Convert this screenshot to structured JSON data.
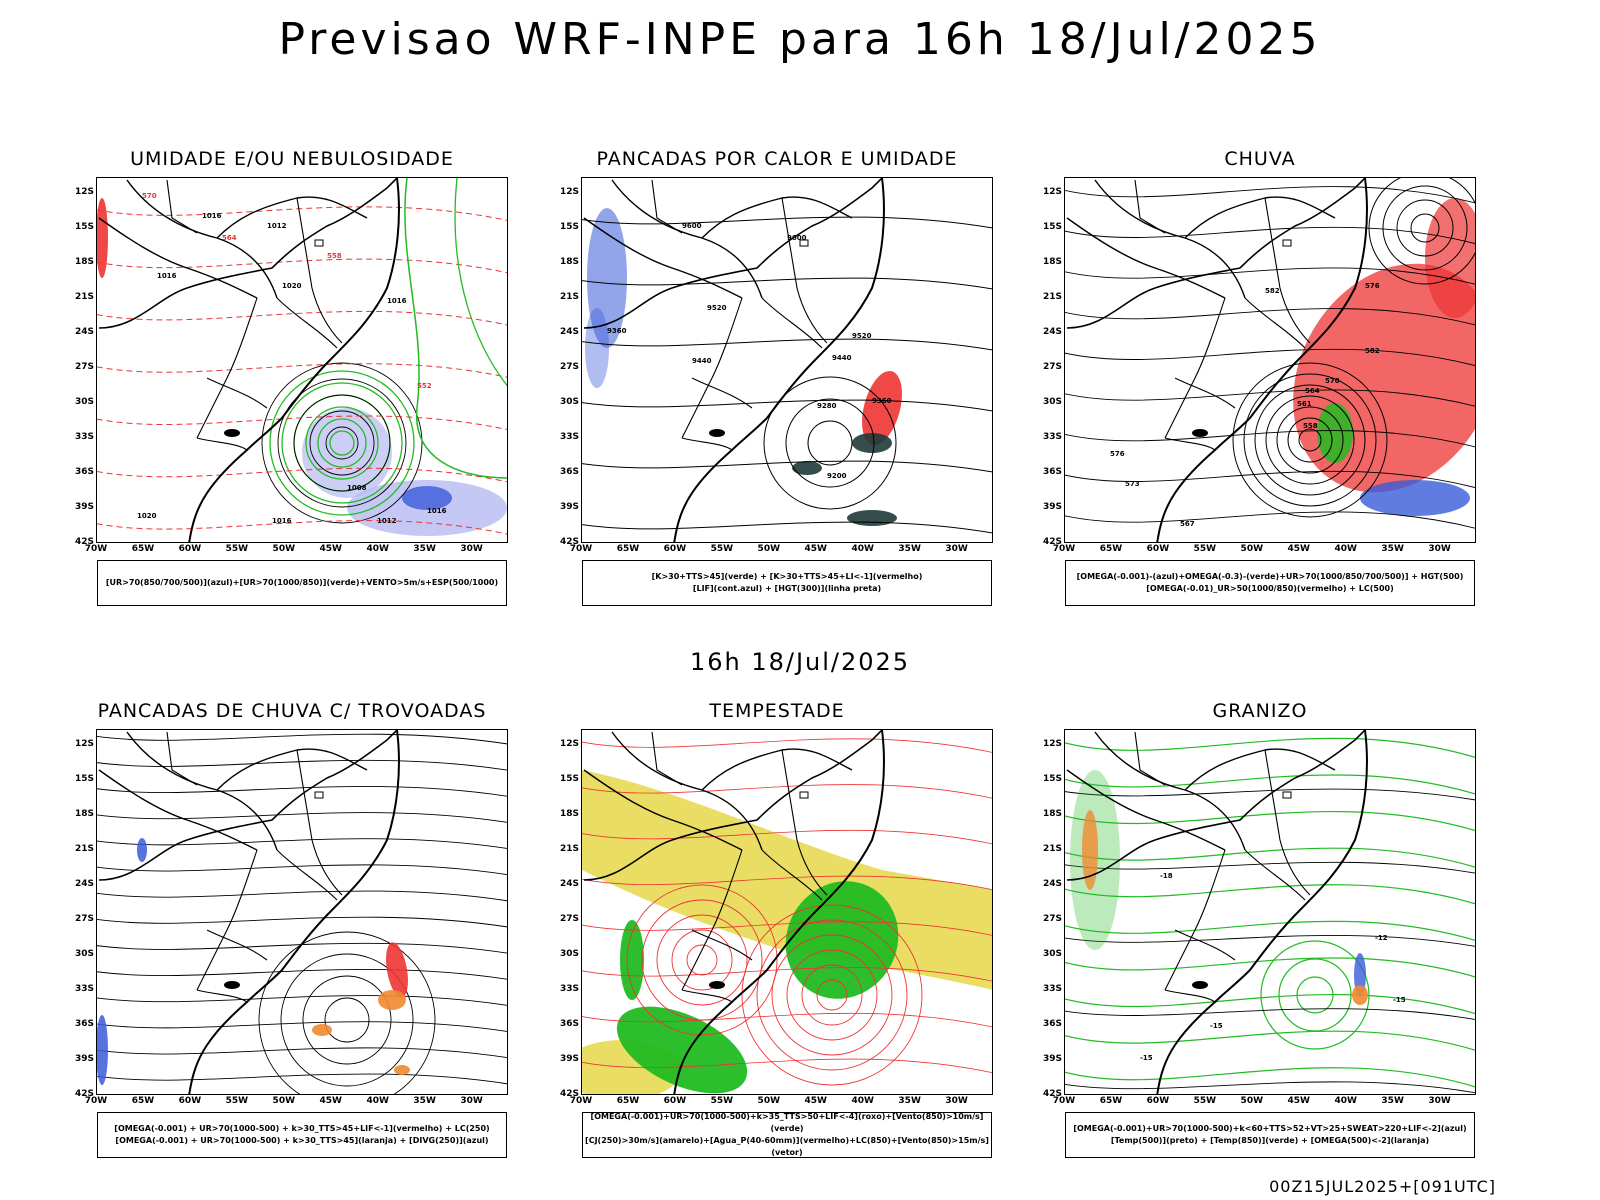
{
  "page": {
    "title": "Previsao WRF-INPE  para 16h 18/Jul/2025",
    "subtitle": "16h 18/Jul/2025",
    "footer": "00Z15JUL2025+[091UTC]"
  },
  "axes": {
    "lat_labels": [
      "12S",
      "15S",
      "18S",
      "21S",
      "24S",
      "27S",
      "30S",
      "33S",
      "36S",
      "39S",
      "42S"
    ],
    "lon_labels": [
      "70W",
      "65W",
      "60W",
      "55W",
      "50W",
      "45W",
      "40W",
      "35W",
      "30W"
    ]
  },
  "colors": {
    "blue": "#3a5bd9",
    "green": "#22bb22",
    "red": "#ee3333",
    "orange": "#f08a30",
    "yellow": "#e3d43c",
    "lightblue": "#b7b9f2",
    "darkteal": "#1f3a3a"
  },
  "panels": [
    {
      "id": "umidade",
      "title": "UMIDADE E/OU NEBULOSIDADE",
      "legend": [
        "[UR>70(850/700/500)](azul)+[UR>70(1000/850)](verde)+VENTO>5m/s+ESP(500/1000)"
      ],
      "labels": [
        "1016",
        "1012",
        "1016",
        "1020",
        "1008",
        "1016",
        "1012",
        "1016",
        "1020",
        "1016",
        "570",
        "564",
        "558",
        "552"
      ]
    },
    {
      "id": "pancadas-calor",
      "title": "PANCADAS POR CALOR E UMIDADE",
      "legend": [
        "[K>30+TTS>45](verde) + [K>30+TTS>45+LI<-1](vermelho)",
        "[LIF](cont.azul) + [HGT(300)](linha preta)"
      ],
      "labels": [
        "9600",
        "9520",
        "9440",
        "9360",
        "9280",
        "9200",
        "9360",
        "9600",
        "9520",
        "9440"
      ]
    },
    {
      "id": "chuva",
      "title": "CHUVA",
      "legend": [
        "[OMEGA(-0.001)-(azul)+OMEGA(-0.3)-(verde)+UR>70(1000/850/700/500)] + HGT(500)",
        "[OMEGA(-0.01)_UR>50(1000/850)(vermelho) + LC(500)"
      ],
      "labels": [
        "582",
        "576",
        "573",
        "567",
        "564",
        "561",
        "558",
        "570",
        "582",
        "576"
      ]
    },
    {
      "id": "trovoadas",
      "title": "PANCADAS DE CHUVA C/ TROVOADAS",
      "legend": [
        "[OMEGA(-0.001) + UR>70(1000-500) + k>30_TTS>45+LIF<-1](vermelho) + LC(250)",
        "[OMEGA(-0.001) + UR>70(1000-500) + k>30_TTS>45](laranja) + [DIVG(250)](azul)"
      ],
      "labels": []
    },
    {
      "id": "tempestade",
      "title": "TEMPESTADE",
      "legend": [
        "[OMEGA(-0.001)+UR>70(1000-500)+k>35_TTS>50+LIF<-4](roxo)+[Vento(850)>10m/s](verde)",
        "[CJ(250)>30m/s](amarelo)+[Agua_P(40-60mm)](vermelho)+LC(850)+[Vento(850)>15m/s](vetor)"
      ],
      "labels": []
    },
    {
      "id": "granizo",
      "title": "GRANIZO",
      "legend": [
        "[OMEGA(-0.001)+UR>70(1000-500)+k<60+TTS>52+VT>25+SWEAT>220+LIF<-2](azul)",
        "[Temp(500)](preto) + [Temp(850)](verde) + [OMEGA(500)<-2](laranja)"
      ],
      "labels": [
        "-12",
        "-15",
        "-15",
        "-15",
        "-18"
      ]
    }
  ]
}
